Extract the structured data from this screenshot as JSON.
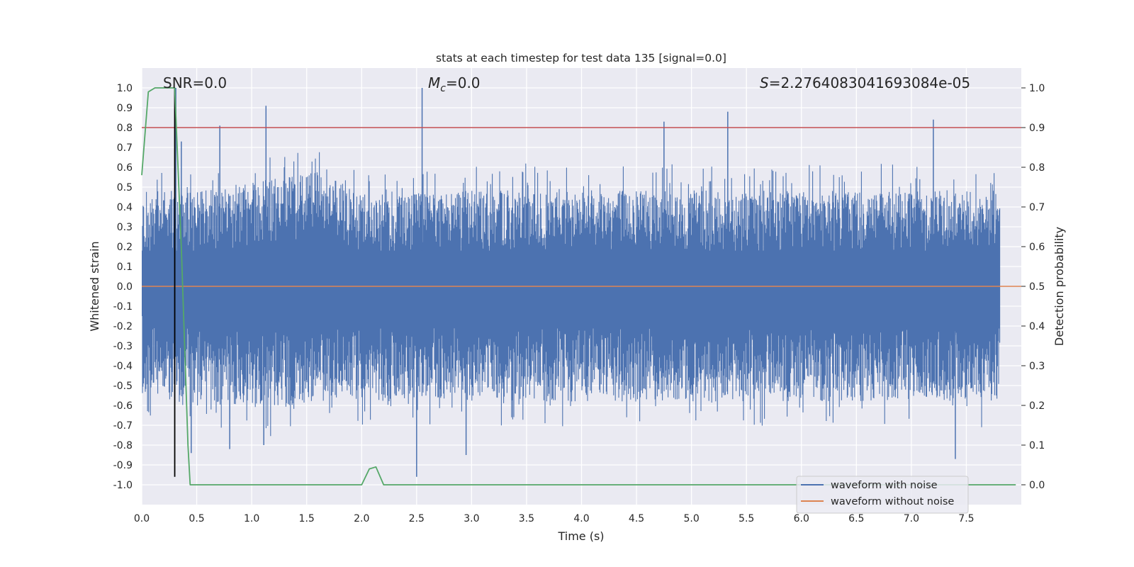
{
  "chart_data": {
    "type": "line",
    "title": "stats at each timestep for test data 135 [signal=0.0]",
    "xlabel": "Time (s)",
    "ylabel": "Whitened strain",
    "y2label": "Detection probability",
    "xlim": [
      0.0,
      8.0
    ],
    "ylim": [
      -1.1,
      1.1
    ],
    "y2lim": [
      -0.05,
      1.05
    ],
    "xticks": [
      "0.0",
      "0.5",
      "1.0",
      "1.5",
      "2.0",
      "2.5",
      "3.0",
      "3.5",
      "4.0",
      "4.5",
      "5.0",
      "5.5",
      "6.0",
      "6.5",
      "7.0",
      "7.5"
    ],
    "yticks": [
      "1.0",
      "0.9",
      "0.8",
      "0.7",
      "0.6",
      "0.5",
      "0.4",
      "0.3",
      "0.2",
      "0.1",
      "0.0",
      "-0.1",
      "-0.2",
      "-0.3",
      "-0.4",
      "-0.5",
      "-0.6",
      "-0.7",
      "-0.8",
      "-0.9",
      "-1.0"
    ],
    "y2ticks": [
      "1.0",
      "0.9",
      "0.8",
      "0.7",
      "0.6",
      "0.5",
      "0.4",
      "0.3",
      "0.2",
      "0.1",
      "0.0"
    ],
    "grid": true,
    "annotations": {
      "snr": "SNR=0.0",
      "mc_symbol": "M",
      "mc_sub": "c",
      "mc_value": "=0.0",
      "s_symbol": "S",
      "s_value": "=2.2764083041693084e-05"
    },
    "legend": {
      "placement": "lower-right",
      "entries": [
        "waveform with noise",
        "waveform without noise"
      ]
    },
    "series": [
      {
        "name": "waveform with noise",
        "axis": "left",
        "color": "#4c72b0",
        "style": "dense noise, peak-to-peak envelope",
        "upper_envelope": [
          0.45,
          0.5,
          0.55,
          0.6,
          0.45,
          0.5,
          0.5,
          0.5,
          0.5,
          0.5,
          0.5,
          0.5,
          0.5,
          0.5,
          0.5,
          0.5
        ],
        "lower_envelope": [
          -0.55,
          -0.6,
          -0.65,
          -0.6,
          -0.6,
          -0.6,
          -0.6,
          -0.6,
          -0.6,
          -0.6,
          -0.6,
          -0.6,
          -0.6,
          -0.6,
          -0.6,
          -0.6
        ],
        "spikes": [
          {
            "x": 0.31,
            "y": 1.0
          },
          {
            "x": 0.36,
            "y": 0.73
          },
          {
            "x": 0.71,
            "y": 0.81
          },
          {
            "x": 1.13,
            "y": 0.91
          },
          {
            "x": 2.55,
            "y": 1.0
          },
          {
            "x": 4.75,
            "y": 0.83
          },
          {
            "x": 5.33,
            "y": 0.88
          },
          {
            "x": 7.2,
            "y": 0.84
          },
          {
            "x": 0.45,
            "y": -0.84
          },
          {
            "x": 0.8,
            "y": -0.82
          },
          {
            "x": 1.11,
            "y": -0.8
          },
          {
            "x": 2.5,
            "y": -0.96
          },
          {
            "x": 2.95,
            "y": -0.85
          },
          {
            "x": 7.4,
            "y": -0.87
          }
        ]
      },
      {
        "name": "waveform without noise",
        "axis": "left",
        "color": "#dd8452",
        "x": [
          0.0,
          8.0
        ],
        "y": [
          0.0,
          0.0
        ]
      },
      {
        "axis": "right",
        "color": "#55a868",
        "x": [
          0.0,
          0.06,
          0.12,
          0.18,
          0.24,
          0.3,
          0.36,
          0.42,
          0.44,
          0.5,
          1.0,
          1.5,
          2.0,
          2.07,
          2.13,
          2.2,
          2.5,
          3.0,
          4.0,
          5.0,
          6.0,
          7.0,
          7.95
        ],
        "y": [
          0.78,
          0.99,
          1.0,
          1.0,
          1.0,
          1.0,
          0.6,
          0.1,
          0.0,
          0.0,
          0.0,
          0.0,
          0.0,
          0.04,
          0.045,
          0.0,
          0.0,
          0.0,
          0.0,
          0.0,
          0.0,
          0.0,
          0.0
        ]
      }
    ],
    "hlines": [
      {
        "axis": "right",
        "y": 0.9,
        "color": "#c44e52"
      }
    ],
    "vlines": [
      {
        "x": 0.3,
        "y_from": -0.96,
        "y_to": 1.0,
        "color": "#000000"
      }
    ],
    "colors": {
      "background": "#eaeaf2",
      "grid": "#ffffff",
      "noise": "#4c72b0",
      "clean": "#dd8452",
      "probability": "#55a868",
      "threshold": "#c44e52",
      "marker": "#000000"
    }
  }
}
